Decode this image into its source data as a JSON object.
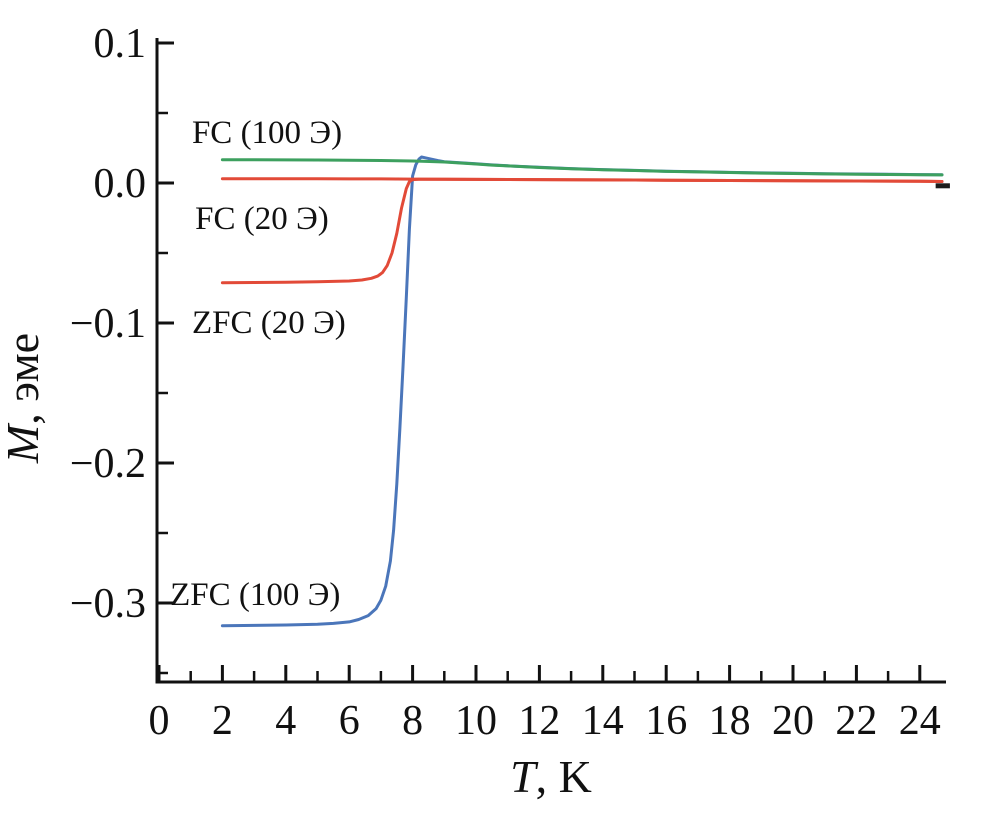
{
  "figure": {
    "background": "#ffffff"
  },
  "chart_data": {
    "type": "line",
    "title": "",
    "xlabel": "T, K",
    "xlabel_parts": {
      "italic": "T",
      "rest": ", K"
    },
    "ylabel": "M, эме",
    "ylabel_parts": {
      "italic": "M",
      "rest": ", эме"
    },
    "xlim": [
      0,
      24.9
    ],
    "ylim": [
      -0.357,
      0.103
    ],
    "grid": false,
    "legend": "inline-annotations",
    "axis_color": "#111111",
    "x_major_ticks": [
      0,
      2,
      4,
      6,
      8,
      10,
      12,
      14,
      16,
      18,
      20,
      22,
      24
    ],
    "x_minor_ticks": [
      1,
      3,
      5,
      7,
      9,
      11,
      13,
      15,
      17,
      19,
      21,
      23
    ],
    "y_major_ticks": [
      0.1,
      0.0,
      -0.1,
      -0.2,
      -0.3
    ],
    "y_major_tick_labels": [
      "0.1",
      "0.0",
      "−0.1",
      "−0.2",
      "−0.3"
    ],
    "y_minor_ticks": [
      0.05,
      -0.05,
      -0.15,
      -0.25,
      -0.35
    ],
    "series": [
      {
        "id": "zfc-100",
        "name": "ZFC (100 Э)",
        "color": "#4b76ba",
        "points": [
          [
            2,
            -0.3162
          ],
          [
            3,
            -0.316
          ],
          [
            4,
            -0.3157
          ],
          [
            5,
            -0.3152
          ],
          [
            5.5,
            -0.3146
          ],
          [
            6,
            -0.3135
          ],
          [
            6.3,
            -0.3118
          ],
          [
            6.6,
            -0.309
          ],
          [
            6.85,
            -0.304
          ],
          [
            7.0,
            -0.298
          ],
          [
            7.15,
            -0.288
          ],
          [
            7.3,
            -0.27
          ],
          [
            7.4,
            -0.248
          ],
          [
            7.5,
            -0.215
          ],
          [
            7.6,
            -0.175
          ],
          [
            7.7,
            -0.13
          ],
          [
            7.8,
            -0.082
          ],
          [
            7.9,
            -0.033
          ],
          [
            8.0,
            0.005
          ],
          [
            8.1,
            0.013
          ],
          [
            8.2,
            0.017
          ],
          [
            8.28,
            0.0186
          ],
          [
            8.4,
            0.018
          ],
          [
            8.6,
            0.017
          ],
          [
            8.8,
            0.016
          ],
          [
            9,
            0.0152
          ],
          [
            9.5,
            0.0144
          ],
          [
            10,
            0.0137
          ],
          [
            10.5,
            0.0129
          ],
          [
            11,
            0.0123
          ],
          [
            12,
            0.0112
          ],
          [
            13,
            0.0103
          ],
          [
            14,
            0.0096
          ],
          [
            15,
            0.009
          ],
          [
            16,
            0.0084
          ],
          [
            17,
            0.008
          ],
          [
            18,
            0.0076
          ],
          [
            19,
            0.0072
          ],
          [
            20,
            0.0069
          ],
          [
            21,
            0.0066
          ],
          [
            22,
            0.0064
          ],
          [
            23,
            0.0062
          ],
          [
            24,
            0.006
          ],
          [
            24.7,
            0.0059
          ]
        ]
      },
      {
        "id": "zfc-20",
        "name": "ZFC (20 Э)",
        "color": "#e24a38",
        "points": [
          [
            2,
            -0.0712
          ],
          [
            3,
            -0.0711
          ],
          [
            4,
            -0.0709
          ],
          [
            5,
            -0.0706
          ],
          [
            6,
            -0.07
          ],
          [
            6.4,
            -0.0693
          ],
          [
            6.7,
            -0.0681
          ],
          [
            6.9,
            -0.0665
          ],
          [
            7.05,
            -0.064
          ],
          [
            7.2,
            -0.059
          ],
          [
            7.35,
            -0.05
          ],
          [
            7.5,
            -0.036
          ],
          [
            7.65,
            -0.018
          ],
          [
            7.8,
            -0.004
          ],
          [
            7.9,
            0.001
          ],
          [
            8.0,
            0.0024
          ],
          [
            8.2,
            0.0027
          ],
          [
            8.5,
            0.0027
          ],
          [
            9,
            0.0027
          ],
          [
            10,
            0.0026
          ],
          [
            12,
            0.0024
          ],
          [
            14,
            0.0022
          ],
          [
            16,
            0.002
          ],
          [
            18,
            0.0018
          ],
          [
            20,
            0.0016
          ],
          [
            22,
            0.0014
          ],
          [
            24,
            0.0012
          ],
          [
            24.7,
            0.0011
          ]
        ]
      },
      {
        "id": "fc-20",
        "name": "FC (20 Э)",
        "color": "#e24a38",
        "points": [
          [
            2,
            0.0031
          ],
          [
            3,
            0.0031
          ],
          [
            4,
            0.003
          ],
          [
            5,
            0.003
          ],
          [
            6,
            0.0029
          ],
          [
            7,
            0.0029
          ],
          [
            8,
            0.0028
          ],
          [
            9,
            0.0027
          ],
          [
            10,
            0.0026
          ],
          [
            12,
            0.0024
          ],
          [
            14,
            0.0022
          ],
          [
            16,
            0.002
          ],
          [
            18,
            0.0018
          ],
          [
            20,
            0.0016
          ],
          [
            22,
            0.0014
          ],
          [
            24,
            0.0012
          ],
          [
            24.7,
            0.0011
          ]
        ]
      },
      {
        "id": "fc-100",
        "name": "FC (100 Э)",
        "color": "#3da05f",
        "points": [
          [
            2,
            0.0166
          ],
          [
            3,
            0.0166
          ],
          [
            4,
            0.0165
          ],
          [
            5,
            0.0164
          ],
          [
            6,
            0.0163
          ],
          [
            7,
            0.0161
          ],
          [
            7.5,
            0.0159
          ],
          [
            8,
            0.0157
          ],
          [
            8.3,
            0.0156
          ],
          [
            9,
            0.015
          ],
          [
            9.5,
            0.0143
          ],
          [
            10,
            0.0136
          ],
          [
            10.5,
            0.0128
          ],
          [
            11,
            0.0122
          ],
          [
            12,
            0.0111
          ],
          [
            13,
            0.0102
          ],
          [
            14,
            0.0095
          ],
          [
            15,
            0.0089
          ],
          [
            16,
            0.0083
          ],
          [
            17,
            0.0079
          ],
          [
            18,
            0.0075
          ],
          [
            19,
            0.0071
          ],
          [
            20,
            0.0068
          ],
          [
            21,
            0.0065
          ],
          [
            22,
            0.0063
          ],
          [
            23,
            0.0061
          ],
          [
            24,
            0.0059
          ],
          [
            24.7,
            0.0058
          ]
        ]
      }
    ],
    "end_marker": {
      "color": "#1c1c1c",
      "points": [
        [
          24.5,
          -0.002
        ],
        [
          24.95,
          -0.002
        ]
      ]
    },
    "annotations": [
      {
        "id": "fc-100-label",
        "text": "FC (100 Э)",
        "x": 1.04,
        "y": 0.0364
      },
      {
        "id": "fc-20-label",
        "text": "FC (20 Э)",
        "x": 1.14,
        "y": -0.025
      },
      {
        "id": "zfc-20-label",
        "text": "ZFC (20 Э)",
        "x": 1.04,
        "y": -0.0993
      },
      {
        "id": "zfc-100-label",
        "text": "ZFC (100 Э)",
        "x": 0.35,
        "y": -0.2936
      }
    ]
  }
}
